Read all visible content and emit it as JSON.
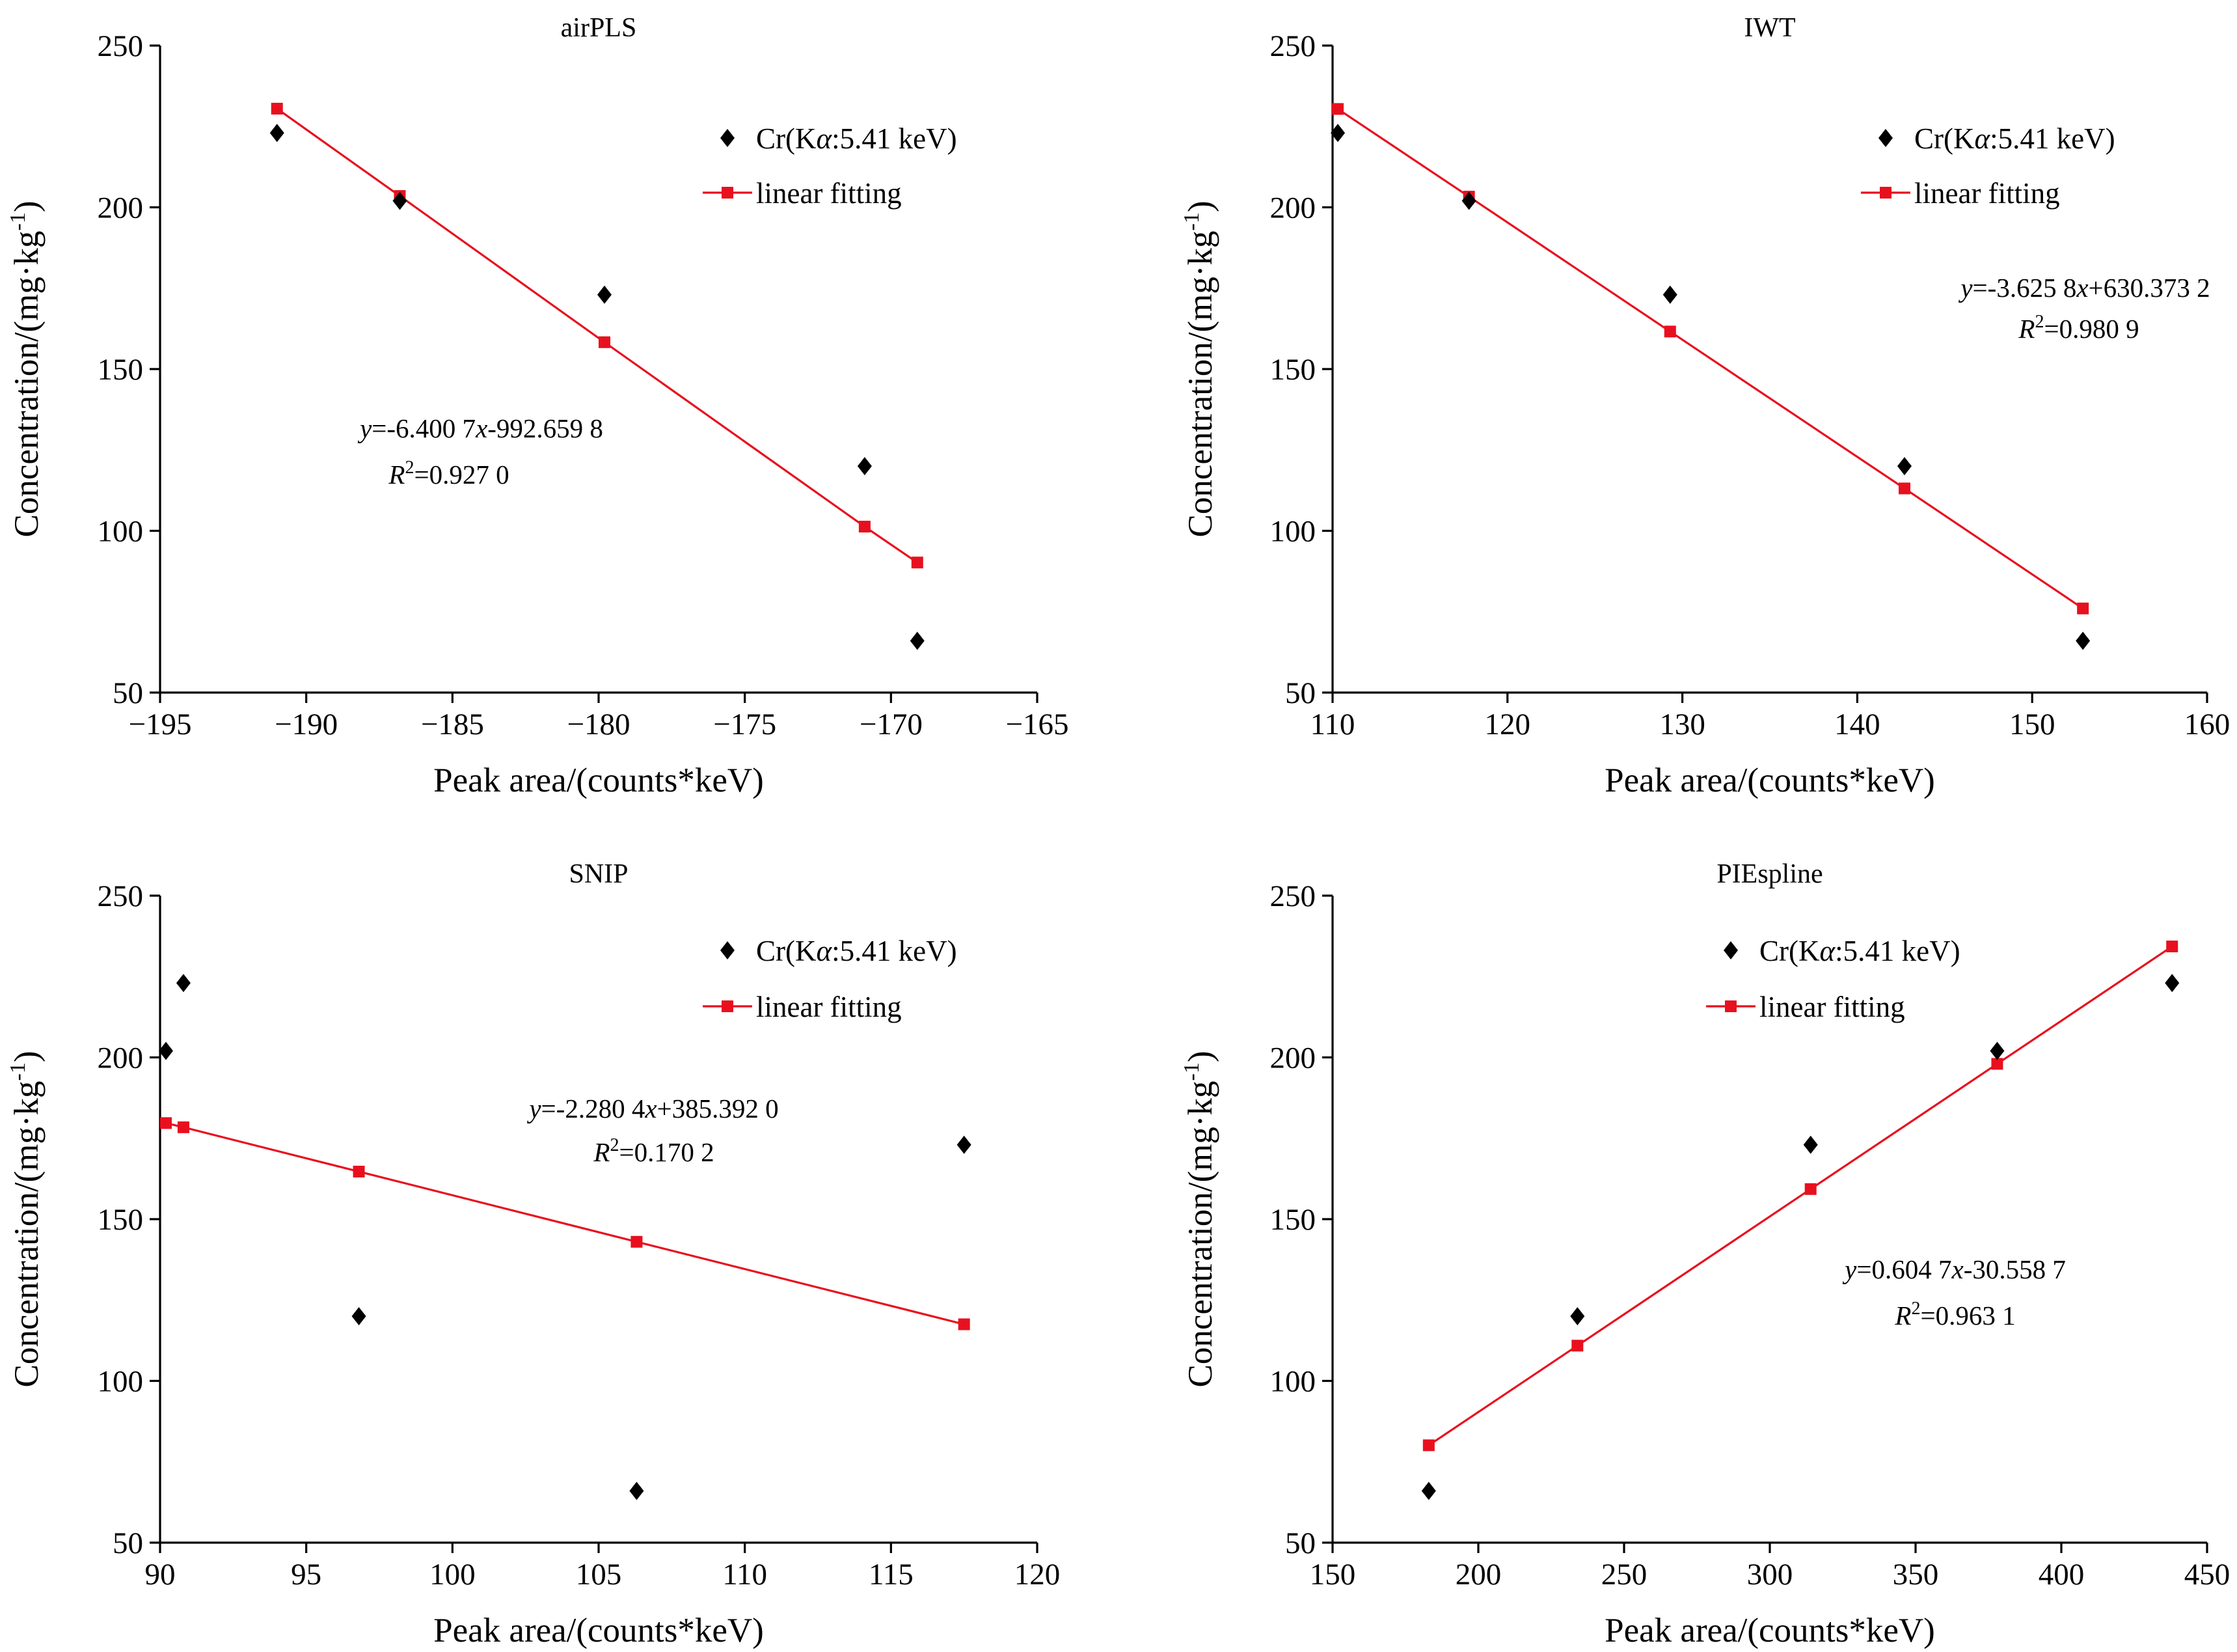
{
  "chart_data": [
    {
      "type": "scatter",
      "title": "airPLS",
      "xlabel": "Peak area/(counts*keV)",
      "ylabel": "Concentration/(mg·kg⁻¹)",
      "xlim": [
        -195,
        -165
      ],
      "ylim": [
        50,
        250
      ],
      "xticks": [
        -195,
        -190,
        -185,
        -180,
        -175,
        -170,
        -165
      ],
      "xtick_labels": [
        "−195",
        "−190",
        "−185",
        "−180",
        "−175",
        "−170",
        "−165"
      ],
      "yticks": [
        50,
        100,
        150,
        200,
        250
      ],
      "ytick_labels": [
        "50",
        "100",
        "150",
        "200",
        "250"
      ],
      "grid": false,
      "legend_position": "top-right",
      "series": [
        {
          "name": "Cr(Kα:5.41 keV)",
          "kind": "scatter",
          "marker": "diamond",
          "color": "#000000",
          "x": [
            -191.0,
            -186.8,
            -179.8,
            -170.9,
            -169.1
          ],
          "y": [
            223,
            202,
            173,
            120,
            66
          ]
        },
        {
          "name": "linear fitting",
          "kind": "line",
          "marker": "square",
          "color": "#e8101e",
          "x": [
            -191.0,
            -186.8,
            -179.8,
            -170.9,
            -169.1
          ],
          "y": [
            230.5,
            203.5,
            158.3,
            101.3,
            90.2
          ]
        }
      ],
      "equation": {
        "prefix": "y",
        "body": "=-6.400 7",
        "var": "x",
        "suffix": "-992.659 8"
      },
      "r2": {
        "prefix": "R",
        "sup": "2",
        "body": "=0.927 0"
      }
    },
    {
      "type": "scatter",
      "title": "IWT",
      "xlabel": "Peak area/(counts*keV)",
      "ylabel": "Concentration/(mg·kg⁻¹)",
      "xlim": [
        110,
        160
      ],
      "ylim": [
        50,
        250
      ],
      "xticks": [
        110,
        120,
        130,
        140,
        150,
        160
      ],
      "xtick_labels": [
        "110",
        "120",
        "130",
        "140",
        "150",
        "160"
      ],
      "yticks": [
        50,
        100,
        150,
        200,
        250
      ],
      "ytick_labels": [
        "50",
        "100",
        "150",
        "200",
        "250"
      ],
      "grid": false,
      "legend_position": "top-right",
      "series": [
        {
          "name": "Cr(Kα:5.41 keV)",
          "kind": "scatter",
          "marker": "diamond",
          "color": "#000000",
          "x": [
            110.3,
            117.8,
            129.3,
            142.7,
            152.9
          ],
          "y": [
            223,
            202,
            173,
            120,
            66
          ]
        },
        {
          "name": "linear fitting",
          "kind": "line",
          "marker": "square",
          "color": "#e8101e",
          "x": [
            110.3,
            117.8,
            129.3,
            142.7,
            152.9
          ],
          "y": [
            230.4,
            203.3,
            161.6,
            113.1,
            76.0
          ]
        }
      ],
      "equation": {
        "prefix": "y",
        "body": "=-3.625 8",
        "var": "x",
        "suffix": "+630.373 2"
      },
      "r2": {
        "prefix": "R",
        "sup": "2",
        "body": "=0.980 9"
      }
    },
    {
      "type": "scatter",
      "title": "SNIP",
      "xlabel": "Peak area/(counts*keV)",
      "ylabel": "Concentration/(mg·kg⁻¹)",
      "xlim": [
        90,
        120
      ],
      "ylim": [
        50,
        250
      ],
      "xticks": [
        90,
        95,
        100,
        105,
        110,
        115,
        120
      ],
      "xtick_labels": [
        "90",
        "95",
        "100",
        "105",
        "110",
        "115",
        "120"
      ],
      "yticks": [
        50,
        100,
        150,
        200,
        250
      ],
      "ytick_labels": [
        "50",
        "100",
        "150",
        "200",
        "250"
      ],
      "grid": false,
      "legend_position": "top-right",
      "series": [
        {
          "name": "Cr(Kα:5.41 keV)",
          "kind": "scatter",
          "marker": "diamond",
          "color": "#000000",
          "x": [
            90.2,
            90.8,
            96.8,
            106.3,
            117.5
          ],
          "y": [
            202,
            223,
            120,
            66,
            173
          ]
        },
        {
          "name": "linear fitting",
          "kind": "line",
          "marker": "square",
          "color": "#e8101e",
          "x": [
            90.2,
            90.8,
            96.8,
            106.3,
            117.5
          ],
          "y": [
            179.7,
            178.4,
            164.7,
            143.0,
            117.5
          ]
        }
      ],
      "equation": {
        "prefix": "y",
        "body": "=-2.280 4",
        "var": "x",
        "suffix": "+385.392 0"
      },
      "r2": {
        "prefix": "R",
        "sup": "2",
        "body": "=0.170 2"
      }
    },
    {
      "type": "scatter",
      "title": "PIEspline",
      "xlabel": "Peak area/(counts*keV)",
      "ylabel": "Concentration/(mg·kg⁻¹)",
      "xlim": [
        150,
        450
      ],
      "ylim": [
        50,
        250
      ],
      "xticks": [
        150,
        200,
        250,
        300,
        350,
        400,
        450
      ],
      "xtick_labels": [
        "150",
        "200",
        "250",
        "300",
        "350",
        "400",
        "450"
      ],
      "yticks": [
        50,
        100,
        150,
        200,
        250
      ],
      "ytick_labels": [
        "50",
        "100",
        "150",
        "200",
        "250"
      ],
      "grid": false,
      "legend_position": "top-center",
      "series": [
        {
          "name": "Cr(Kα:5.41 keV)",
          "kind": "scatter",
          "marker": "diamond",
          "color": "#000000",
          "x": [
            183,
            234,
            314,
            378,
            438
          ],
          "y": [
            66,
            120,
            173,
            202,
            223
          ]
        },
        {
          "name": "linear fitting",
          "kind": "line",
          "marker": "square",
          "color": "#e8101e",
          "x": [
            183,
            234,
            314,
            378,
            438
          ],
          "y": [
            80.1,
            110.9,
            159.3,
            198.0,
            234.3
          ]
        }
      ],
      "equation": {
        "prefix": "y",
        "body": "=0.604 7",
        "var": "x",
        "suffix": "-30.558 7"
      },
      "r2": {
        "prefix": "R",
        "sup": "2",
        "body": "=0.963 1"
      }
    }
  ],
  "labels": {
    "ylabel_main": "Concentration/(mg·kg",
    "ylabel_exp": "-1",
    "ylabel_close": ")",
    "legend_scatter_pre": "Cr(K",
    "legend_scatter_alpha": "α",
    "legend_scatter_post": ":5.41 keV)",
    "legend_line": "linear fitting"
  }
}
